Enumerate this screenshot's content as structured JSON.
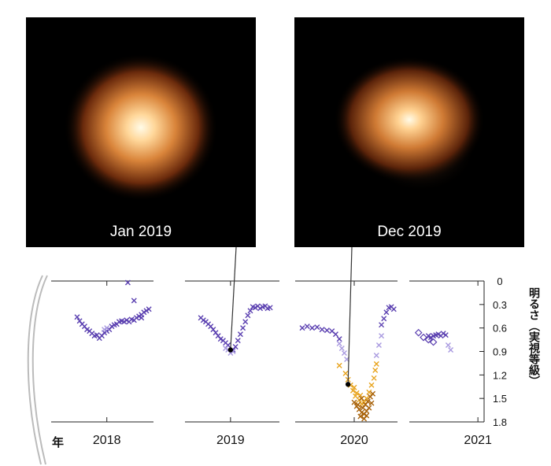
{
  "images": [
    {
      "caption": "Jan 2019",
      "date_x": 2019.0,
      "mag": 0.88
    },
    {
      "caption": "Dec 2019",
      "date_x": 2019.95,
      "mag": 1.32
    }
  ],
  "chart_data": {
    "type": "scatter",
    "title": "",
    "xlabel": "年",
    "ylabel": "明るさ（実視等級）",
    "xlim": [
      2017.55,
      2021.05
    ],
    "ylim": [
      0,
      1.8
    ],
    "y_inverted": true,
    "xticks": [
      "2018",
      "2019",
      "2020",
      "2021"
    ],
    "xtick_values": [
      2018,
      2019,
      2020,
      2021
    ],
    "yticks": [
      "0",
      "0.3",
      "0.6",
      "0.9",
      "1.2",
      "1.5",
      "1.8"
    ],
    "ytick_values": [
      0,
      0.3,
      0.6,
      0.9,
      1.2,
      1.5,
      1.8
    ],
    "colors": {
      "purple": "#5a3fb0",
      "lavender": "#a99ae0",
      "orange": "#e8a41e",
      "brown": "#a8620a",
      "axis": "#222222"
    },
    "series": [
      {
        "marker": "x",
        "points": [
          [
            2017.76,
            0.46
          ],
          [
            2017.78,
            0.51
          ],
          [
            2017.8,
            0.55
          ],
          [
            2017.82,
            0.58
          ],
          [
            2017.84,
            0.62
          ],
          [
            2017.86,
            0.64
          ],
          [
            2017.88,
            0.67
          ],
          [
            2017.9,
            0.7
          ],
          [
            2017.92,
            0.69
          ],
          [
            2017.94,
            0.73
          ],
          [
            2017.96,
            0.7
          ],
          [
            2017.98,
            0.66
          ],
          [
            2018.0,
            0.64
          ],
          [
            2018.02,
            0.62
          ],
          [
            2018.04,
            0.58
          ],
          [
            2018.06,
            0.56
          ],
          [
            2018.08,
            0.55
          ],
          [
            2018.1,
            0.52
          ],
          [
            2018.12,
            0.51
          ],
          [
            2018.14,
            0.52
          ],
          [
            2018.16,
            0.5
          ],
          [
            2018.18,
            0.52
          ],
          [
            2018.2,
            0.49
          ],
          [
            2018.22,
            0.5
          ],
          [
            2018.24,
            0.47
          ],
          [
            2018.26,
            0.45
          ],
          [
            2018.28,
            0.43
          ],
          [
            2018.3,
            0.4
          ],
          [
            2018.32,
            0.38
          ],
          [
            2018.34,
            0.36
          ],
          [
            2018.17,
            0.02
          ],
          [
            2018.22,
            0.25
          ],
          [
            2018.28,
            0.47
          ],
          [
            2018.76,
            0.47
          ],
          [
            2018.78,
            0.5
          ],
          [
            2018.8,
            0.52
          ],
          [
            2018.82,
            0.55
          ],
          [
            2018.84,
            0.58
          ],
          [
            2018.86,
            0.62
          ],
          [
            2018.88,
            0.66
          ],
          [
            2018.9,
            0.7
          ],
          [
            2018.92,
            0.74
          ],
          [
            2018.94,
            0.76
          ],
          [
            2018.96,
            0.79
          ],
          [
            2018.98,
            0.82
          ],
          [
            2019.02,
            0.88
          ],
          [
            2019.04,
            0.84
          ],
          [
            2019.06,
            0.76
          ],
          [
            2019.08,
            0.68
          ],
          [
            2019.1,
            0.6
          ],
          [
            2019.12,
            0.52
          ],
          [
            2019.14,
            0.44
          ],
          [
            2019.16,
            0.38
          ],
          [
            2019.18,
            0.33
          ],
          [
            2019.2,
            0.34
          ],
          [
            2019.22,
            0.32
          ],
          [
            2019.24,
            0.35
          ],
          [
            2019.26,
            0.33
          ],
          [
            2019.28,
            0.32
          ],
          [
            2019.3,
            0.35
          ],
          [
            2019.32,
            0.34
          ],
          [
            2019.58,
            0.6
          ],
          [
            2019.62,
            0.58
          ],
          [
            2019.66,
            0.6
          ],
          [
            2019.7,
            0.59
          ],
          [
            2019.74,
            0.62
          ],
          [
            2019.78,
            0.63
          ],
          [
            2019.82,
            0.64
          ],
          [
            2019.85,
            0.68
          ],
          [
            2019.88,
            0.74
          ],
          [
            2020.22,
            0.56
          ],
          [
            2020.24,
            0.48
          ],
          [
            2020.26,
            0.4
          ],
          [
            2020.28,
            0.34
          ],
          [
            2020.3,
            0.33
          ],
          [
            2020.32,
            0.36
          ],
          [
            2020.6,
            0.7
          ],
          [
            2020.62,
            0.72
          ],
          [
            2020.64,
            0.7
          ],
          [
            2020.66,
            0.69
          ],
          [
            2020.68,
            0.68
          ],
          [
            2020.7,
            0.7
          ],
          [
            2020.72,
            0.67
          ],
          [
            2020.74,
            0.69
          ]
        ],
        "color": "#5a3fb0"
      },
      {
        "marker": "x",
        "points": [
          [
            2018.98,
            0.88
          ],
          [
            2019.0,
            0.92
          ],
          [
            2018.96,
            0.86
          ],
          [
            2019.02,
            0.9
          ],
          [
            2019.88,
            0.8
          ],
          [
            2019.9,
            0.86
          ],
          [
            2019.92,
            0.92
          ],
          [
            2019.94,
            1.0
          ],
          [
            2020.18,
            0.95
          ],
          [
            2020.2,
            0.82
          ],
          [
            2020.22,
            0.7
          ],
          [
            2020.76,
            0.82
          ],
          [
            2020.78,
            0.88
          ],
          [
            2018.0,
            0.6
          ],
          [
            2017.98,
            0.62
          ]
        ],
        "color": "#a99ae0"
      },
      {
        "marker": "x",
        "points": [
          [
            2019.88,
            1.08
          ],
          [
            2019.93,
            1.18
          ],
          [
            2019.95,
            1.26
          ],
          [
            2019.97,
            1.33
          ],
          [
            2019.99,
            1.4
          ],
          [
            2020.01,
            1.47
          ],
          [
            2020.02,
            1.43
          ],
          [
            2020.04,
            1.52
          ],
          [
            2020.06,
            1.57
          ],
          [
            2020.08,
            1.55
          ],
          [
            2020.1,
            1.5
          ],
          [
            2020.12,
            1.42
          ],
          [
            2020.14,
            1.33
          ],
          [
            2020.16,
            1.24
          ],
          [
            2020.17,
            1.14
          ],
          [
            2020.18,
            1.06
          ],
          [
            2020.0,
            1.36
          ],
          [
            2020.05,
            1.46
          ]
        ],
        "color": "#e8a41e"
      },
      {
        "marker": "x",
        "points": [
          [
            2020.0,
            1.55
          ],
          [
            2020.02,
            1.6
          ],
          [
            2020.04,
            1.64
          ],
          [
            2020.06,
            1.68
          ],
          [
            2020.08,
            1.7
          ],
          [
            2020.1,
            1.66
          ],
          [
            2020.12,
            1.62
          ],
          [
            2020.14,
            1.56
          ],
          [
            2020.05,
            1.73
          ],
          [
            2020.07,
            1.62
          ],
          [
            2020.09,
            1.58
          ],
          [
            2020.11,
            1.54
          ],
          [
            2020.03,
            1.58
          ],
          [
            2020.13,
            1.48
          ],
          [
            2020.15,
            1.44
          ],
          [
            2020.08,
            1.76
          ],
          [
            2020.06,
            1.5
          ],
          [
            2020.1,
            1.72
          ]
        ],
        "color": "#a8620a"
      },
      {
        "marker": "diamond",
        "points": [
          [
            2020.52,
            0.66
          ],
          [
            2020.56,
            0.72
          ],
          [
            2020.6,
            0.75
          ],
          [
            2020.64,
            0.78
          ]
        ],
        "color": "#5a3fb0"
      }
    ]
  }
}
